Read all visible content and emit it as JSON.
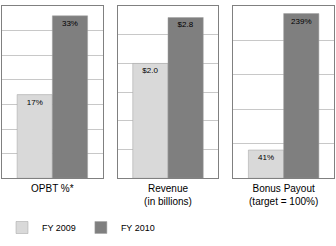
{
  "chart_data": [
    {
      "type": "bar",
      "xlabel": "OPBT %*",
      "categories": [
        null
      ],
      "series": [
        {
          "name": "FY 2009",
          "color": "#d9d9d9",
          "values": [
            17
          ],
          "value_labels": [
            "17%"
          ]
        },
        {
          "name": "FY 2010",
          "color": "#7f7f7f",
          "values": [
            33
          ],
          "value_labels": [
            "33%"
          ]
        }
      ],
      "ylim": [
        0,
        35
      ],
      "yticks": [
        0,
        5,
        10,
        15,
        20,
        25,
        30,
        35
      ],
      "grid": true,
      "tick_labels": false,
      "data_labels": true,
      "legend": "bottom left"
    },
    {
      "type": "bar",
      "xlabel": "Revenue\n(in billions)",
      "categories": [
        null
      ],
      "series": [
        {
          "name": "FY 2009",
          "color": "#d9d9d9",
          "values": [
            2.0
          ],
          "value_labels": [
            "$2.0"
          ]
        },
        {
          "name": "FY 2010",
          "color": "#7f7f7f",
          "values": [
            2.8
          ],
          "value_labels": [
            "$2.8"
          ]
        }
      ],
      "ylim": [
        0,
        3
      ],
      "yticks": [
        0,
        0.5,
        1,
        1.5,
        2,
        2.5,
        3
      ],
      "grid": true,
      "tick_labels": false,
      "data_labels": true
    },
    {
      "type": "bar",
      "xlabel": "Bonus Payout\n(target = 100%)",
      "categories": [
        null
      ],
      "series": [
        {
          "name": "FY 2009",
          "color": "#d9d9d9",
          "values": [
            41
          ],
          "value_labels": [
            "41%"
          ]
        },
        {
          "name": "FY 2010",
          "color": "#7f7f7f",
          "values": [
            239
          ],
          "value_labels": [
            "239%"
          ]
        }
      ],
      "ylim": [
        0,
        250
      ],
      "yticks": [
        0,
        50,
        100,
        150,
        200,
        250
      ],
      "grid": true,
      "tick_labels": false,
      "data_labels": true
    }
  ]
}
